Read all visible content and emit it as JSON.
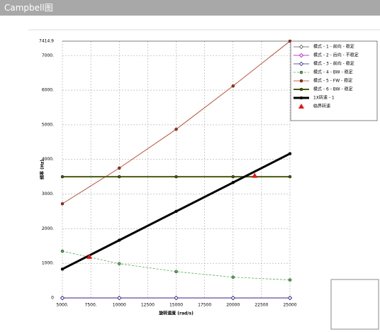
{
  "window_title": "Campbell图",
  "chart_data": {
    "type": "line",
    "xlabel": "旋转速度 (rad/s)",
    "ylabel": "频率 (Hz)",
    "x": [
      5000,
      10000,
      15000,
      20000,
      25000
    ],
    "xlim": [
      5000,
      25000
    ],
    "xticks": [
      {
        "value": 5000,
        "label": "5000."
      },
      {
        "value": 7500,
        "label": "7500."
      },
      10000,
      12500,
      15000,
      17500,
      20000,
      22500,
      25000
    ],
    "ylim": [
      0,
      7414.9
    ],
    "yticks": [
      0,
      {
        "value": 1000,
        "label": "1000."
      },
      {
        "value": 2000,
        "label": "2000."
      },
      {
        "value": 3000,
        "label": "3000."
      },
      {
        "value": 4000,
        "label": "4000."
      },
      {
        "value": 5000,
        "label": "5000."
      },
      {
        "value": 6000,
        "label": "6000."
      },
      {
        "value": 7000,
        "label": "7000."
      },
      7414.9
    ],
    "grid": true,
    "legend": "upper right",
    "series": [
      {
        "name": "模式 - 1 - 前向 - 稳定",
        "color": "#505050",
        "marker": "diamond",
        "values": [
          0,
          0,
          0,
          0,
          0
        ]
      },
      {
        "name": "模式 - 2 - 后向 - 不稳定",
        "color": "#b000b0",
        "marker": "diamond",
        "values": [
          0,
          0,
          0,
          0,
          0
        ]
      },
      {
        "name": "模式 - 3 - 前向 - 稳定",
        "color": "#202080",
        "marker": "diamond",
        "values": [
          0,
          0,
          0,
          0,
          0
        ]
      },
      {
        "name": "模式 - 4 - BW - 稳定",
        "color": "#50b050",
        "marker": "circle",
        "dashed": true,
        "values": [
          1350,
          990,
          760,
          600,
          520
        ]
      },
      {
        "name": "模式 - 5 - FW - 稳定",
        "color": "#b03010",
        "marker": "circle",
        "values": [
          2720,
          3750,
          4870,
          6120,
          7414.9
        ]
      },
      {
        "name": "模式 - 6 - BW - 稳定",
        "color": "#4a5a10",
        "marker": "circle",
        "width": 2,
        "values": [
          3500,
          3500,
          3500,
          3500,
          3500
        ]
      },
      {
        "name": "1X转速 - 1",
        "color": "#000000",
        "marker": "circle",
        "width": 3,
        "values": [
          833,
          1667,
          2500,
          3333,
          4167
        ]
      }
    ],
    "critical": {
      "name": "临界转速",
      "color": "#ee1111",
      "x": [
        7370,
        21900
      ],
      "values": [
        1190,
        3530
      ]
    }
  }
}
